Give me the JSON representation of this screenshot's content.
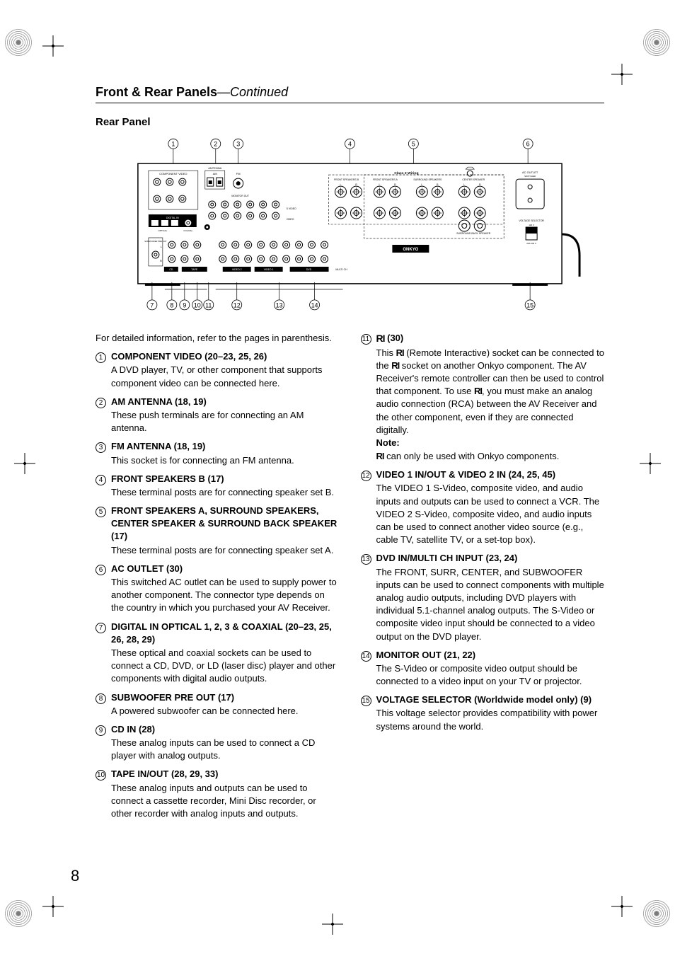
{
  "sectionTitle": "Front & Rear Panels",
  "continued": "—Continued",
  "subtitle": "Rear Panel",
  "intro": "For detailed information, refer to the pages in parenthesis.",
  "pageNumber": "8",
  "diagram": {
    "topLabels": [
      "1",
      "2",
      "3",
      "4",
      "5",
      "6"
    ],
    "bottomLabels": [
      "7",
      "8",
      "9",
      "10",
      "11",
      "12",
      "13",
      "14",
      "15"
    ],
    "panelText": {
      "componentVideo": "COMPONENT VIDEO",
      "class2": "Class 2 Wiring",
      "frontSpeakersB": "FRONT SPEAKERS B",
      "frontSpeakersA": "FRONT SPEAKERS A",
      "surroundSpeakers": "SURROUND SPEAKERS",
      "centerSpeaker": "CENTER SPEAKER",
      "acOutlet": "AC OUTLET",
      "switched": "SWITCHED",
      "voltageSelector": "VOLTAGE SELECTOR",
      "v120": "120 V",
      "v220": "220-230 V",
      "surroundBack": "SURROUND BACK SPEAKER",
      "digitalIn": "DIGITAL IN",
      "optical": "OPTICAL",
      "coaxial": "COAXIAL",
      "subwooferPreOut": "SUBWOOFER PRE OUT",
      "cd": "CD",
      "tape": "TAPE",
      "video2": "VIDEO 2",
      "video1": "VIDEO 1",
      "dvd": "DVD",
      "multiCh": "MULTI CH",
      "monitorOut": "MONITOR OUT",
      "in": "IN",
      "out": "OUT",
      "L": "L",
      "R": "R",
      "front": "FRONT",
      "surr": "SURR",
      "center": "CENTER",
      "sub": "SUB",
      "sVideo": "S VIDEO",
      "video": "VIDEO",
      "brand": "ONKYO",
      "am": "AM",
      "fm": "FM",
      "antenna": "ANTENNA"
    }
  },
  "left": [
    {
      "n": "1",
      "head": "COMPONENT VIDEO (20–23, 25, 26)",
      "desc": "A DVD player, TV, or other component that supports component video can be connected here."
    },
    {
      "n": "2",
      "head": "AM ANTENNA (18, 19)",
      "desc": "These push terminals are for connecting an AM antenna."
    },
    {
      "n": "3",
      "head": "FM ANTENNA (18, 19)",
      "desc": "This socket is for connecting an FM antenna."
    },
    {
      "n": "4",
      "head": "FRONT SPEAKERS B (17)",
      "desc": "These terminal posts are for connecting speaker set B."
    },
    {
      "n": "5",
      "head": "FRONT SPEAKERS A, SURROUND SPEAKERS, CENTER SPEAKER & SURROUND BACK SPEAKER (17)",
      "desc": "These terminal posts are for connecting speaker set A."
    },
    {
      "n": "6",
      "head": "AC OUTLET (30)",
      "desc": "This switched AC outlet can be used to supply power to another component. The connector type depends on the country in which you purchased your AV Receiver."
    },
    {
      "n": "7",
      "head": "DIGITAL IN OPTICAL 1, 2, 3 & COAXIAL (20–23, 25, 26, 28, 29)",
      "desc": "These optical and coaxial sockets can be used to connect a CD, DVD, or LD (laser disc) player and other components with digital audio outputs."
    },
    {
      "n": "8",
      "head": "SUBWOOFER PRE OUT (17)",
      "desc": "A powered subwoofer can be connected here."
    },
    {
      "n": "9",
      "head": "CD IN (28)",
      "desc": "These analog inputs can be used to connect a CD player with analog outputs."
    },
    {
      "n": "10",
      "head": "TAPE IN/OUT (28, 29, 33)",
      "desc": "These analog inputs and outputs can be used to connect a cassette recorder, Mini Disc recorder, or other recorder with analog inputs and outputs."
    }
  ],
  "right": [
    {
      "n": "11",
      "head": " (30)",
      "isRI": true,
      "desc": "This __RI__ (Remote Interactive) socket can be connected to the __RI__ socket on another Onkyo component. The AV Receiver's remote controller can then be used to control that component. To use __RI__, you must make an analog audio connection (RCA) between the AV Receiver and the other component, even if they are connected digitally.",
      "note": "Note:",
      "noteBody": "__RI__ can only be used with Onkyo components."
    },
    {
      "n": "12",
      "head": "VIDEO 1 IN/OUT & VIDEO 2 IN (24, 25, 45)",
      "desc": "The VIDEO 1 S-Video, composite video, and audio inputs and outputs can be used to connect a VCR. The VIDEO 2 S-Video, composite video, and audio inputs can be used to connect another video source (e.g., cable TV, satellite TV, or a set-top box)."
    },
    {
      "n": "13",
      "head": "DVD IN/MULTI CH INPUT (23, 24)",
      "desc": "The FRONT, SURR, CENTER, and SUBWOOFER inputs can be used to connect components with multiple analog audio outputs, including DVD players with individual 5.1-channel analog outputs. The S-Video or composite video input should be connected to a video output on the DVD player."
    },
    {
      "n": "14",
      "head": "MONITOR OUT (21, 22)",
      "desc": "The S-Video or composite video output should be connected to a video input on your TV or projector."
    },
    {
      "n": "15",
      "head": "VOLTAGE SELECTOR (Worldwide model only) (9)",
      "desc": "This voltage selector provides compatibility with power systems around the world."
    }
  ]
}
